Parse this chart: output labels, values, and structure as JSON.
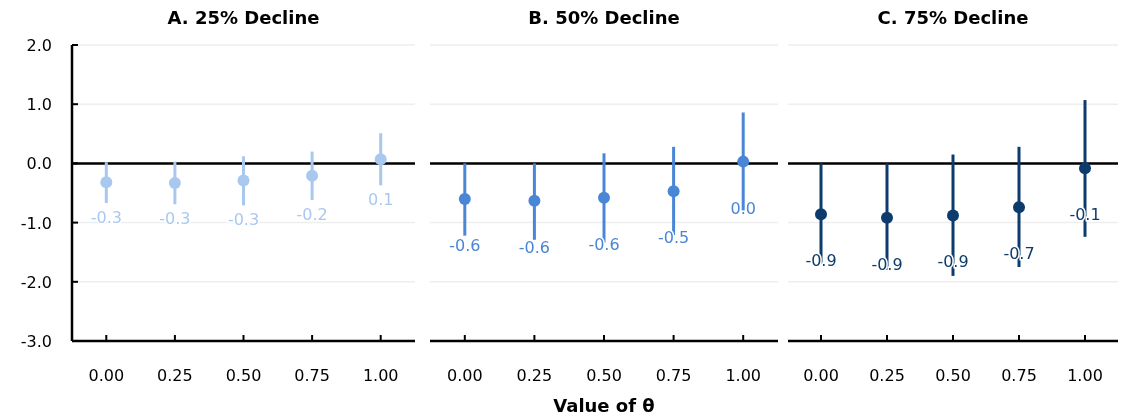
{
  "chart_data": [
    {
      "type": "scatter",
      "title": "A. 25% Decline",
      "categories": [
        "0.00",
        "0.25",
        "0.50",
        "0.75",
        "1.00"
      ],
      "ylim": [
        -3,
        2
      ],
      "yticks": [
        {
          "value": -3,
          "label": "-3.0"
        },
        {
          "value": -2,
          "label": "-2.0"
        },
        {
          "value": -1,
          "label": "-1.0"
        },
        {
          "value": 0,
          "label": "0.0"
        },
        {
          "value": 1,
          "label": "1.0"
        },
        {
          "value": 2,
          "label": "2.0"
        }
      ],
      "grid": "y",
      "marker": "circle",
      "ref_lines": [
        {
          "axis": "y",
          "value": 0,
          "color": "#000000"
        }
      ],
      "series": [
        {
          "color": "#a9c8f0",
          "values": [
            -0.32,
            -0.33,
            -0.29,
            -0.21,
            0.07
          ],
          "errors": [
            [
              -0.67,
              0.02
            ],
            [
              -0.69,
              0.03
            ],
            [
              -0.71,
              0.12
            ],
            [
              -0.62,
              0.2
            ],
            [
              -0.37,
              0.51
            ]
          ],
          "value_labels": [
            "-0.3",
            "-0.3",
            "-0.3",
            "-0.2",
            "0.1"
          ]
        }
      ]
    },
    {
      "type": "scatter",
      "title": "B. 50% Decline",
      "xlabel": "Value of θ",
      "categories": [
        "0.00",
        "0.25",
        "0.50",
        "0.75",
        "1.00"
      ],
      "ylim": [
        -3,
        2
      ],
      "yticks": [
        {
          "value": -3,
          "label": null
        },
        {
          "value": -2,
          "label": null
        },
        {
          "value": -1,
          "label": null
        },
        {
          "value": 0,
          "label": null
        },
        {
          "value": 1,
          "label": null
        },
        {
          "value": 2,
          "label": null
        }
      ],
      "tick_labels": "x",
      "grid": "y",
      "marker": "circle",
      "ref_lines": [
        {
          "axis": "y",
          "value": 0,
          "color": "#000000"
        }
      ],
      "series": [
        {
          "color": "#4a86d6",
          "values": [
            -0.6,
            -0.63,
            -0.58,
            -0.47,
            0.03
          ],
          "errors": [
            [
              -1.22,
              0.0
            ],
            [
              -1.29,
              0.0
            ],
            [
              -1.34,
              0.17
            ],
            [
              -1.21,
              0.28
            ],
            [
              -0.8,
              0.86
            ]
          ],
          "value_labels": [
            "-0.6",
            "-0.6",
            "-0.6",
            "-0.5",
            "0.0"
          ]
        }
      ]
    },
    {
      "type": "scatter",
      "title": "C. 75% Decline",
      "categories": [
        "0.00",
        "0.25",
        "0.50",
        "0.75",
        "1.00"
      ],
      "ylim": [
        -3,
        2
      ],
      "yticks": [
        {
          "value": -3,
          "label": null
        },
        {
          "value": -2,
          "label": null
        },
        {
          "value": -1,
          "label": null
        },
        {
          "value": 0,
          "label": null
        },
        {
          "value": 1,
          "label": null
        },
        {
          "value": 2,
          "label": null
        }
      ],
      "tick_labels": "x",
      "grid": "y",
      "marker": "circle",
      "ref_lines": [
        {
          "axis": "y",
          "value": 0,
          "color": "#000000"
        }
      ],
      "series": [
        {
          "color": "#0d3b6e",
          "values": [
            -0.86,
            -0.92,
            -0.88,
            -0.74,
            -0.08
          ],
          "errors": [
            [
              -1.7,
              0.0
            ],
            [
              -1.8,
              0.0
            ],
            [
              -1.9,
              0.15
            ],
            [
              -1.75,
              0.28
            ],
            [
              -1.24,
              1.07
            ]
          ],
          "value_labels": [
            "-0.9",
            "-0.9",
            "-0.9",
            "-0.7",
            "-0.1"
          ]
        }
      ]
    }
  ]
}
